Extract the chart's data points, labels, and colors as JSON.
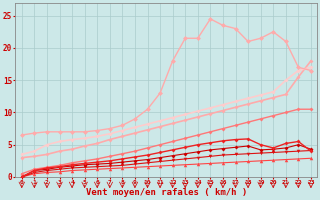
{
  "bg_color": "#cce8e8",
  "grid_color": "#aacccc",
  "xlabel": "Vent moyen/en rafales ( km/h )",
  "xlabel_color": "#cc0000",
  "tick_color": "#cc0000",
  "ylim": [
    0,
    27
  ],
  "yticks": [
    0,
    5,
    10,
    15,
    20,
    25
  ],
  "x_values": [
    0,
    1,
    2,
    3,
    4,
    5,
    6,
    7,
    8,
    9,
    10,
    11,
    12,
    13,
    14,
    15,
    16,
    17,
    18,
    19,
    20,
    21,
    22,
    23
  ],
  "lines": [
    {
      "y": [
        0.0,
        0.5,
        0.7,
        0.8,
        1.0,
        1.1,
        1.2,
        1.3,
        1.4,
        1.5,
        1.6,
        1.7,
        1.8,
        1.9,
        2.0,
        2.1,
        2.2,
        2.3,
        2.4,
        2.5,
        2.6,
        2.7,
        2.8,
        2.9
      ],
      "color": "#ff4444",
      "lw": 0.8,
      "marker": "^",
      "ms": 2.5,
      "zorder": 3
    },
    {
      "y": [
        0.0,
        0.7,
        1.0,
        1.2,
        1.4,
        1.5,
        1.6,
        1.7,
        1.8,
        2.0,
        2.2,
        2.4,
        2.6,
        2.8,
        3.0,
        3.2,
        3.4,
        3.5,
        3.6,
        3.7,
        3.8,
        3.9,
        4.0,
        4.1
      ],
      "color": "#dd1111",
      "lw": 0.8,
      "marker": "v",
      "ms": 2.5,
      "zorder": 3
    },
    {
      "y": [
        0.0,
        1.0,
        1.2,
        1.5,
        1.7,
        1.9,
        2.0,
        2.1,
        2.3,
        2.5,
        2.7,
        3.0,
        3.3,
        3.6,
        3.9,
        4.2,
        4.4,
        4.6,
        4.8,
        4.2,
        4.3,
        4.5,
        5.0,
        4.3
      ],
      "color": "#cc0000",
      "lw": 0.8,
      "marker": "D",
      "ms": 2,
      "zorder": 3
    },
    {
      "y": [
        0.0,
        1.0,
        1.4,
        1.6,
        1.9,
        2.1,
        2.3,
        2.5,
        2.8,
        3.1,
        3.4,
        3.8,
        4.2,
        4.6,
        5.0,
        5.3,
        5.6,
        5.8,
        5.9,
        5.0,
        4.5,
        5.2,
        5.5,
        4.0
      ],
      "color": "#ee2222",
      "lw": 1.0,
      "marker": "D",
      "ms": 2,
      "zorder": 3
    },
    {
      "y": [
        0.5,
        1.2,
        1.5,
        1.8,
        2.2,
        2.5,
        2.8,
        3.2,
        3.6,
        4.0,
        4.5,
        5.0,
        5.5,
        6.0,
        6.5,
        7.0,
        7.5,
        8.0,
        8.5,
        9.0,
        9.5,
        10.0,
        10.5,
        10.5
      ],
      "color": "#ff7777",
      "lw": 1.0,
      "marker": "D",
      "ms": 2,
      "zorder": 2
    },
    {
      "y": [
        3.0,
        3.2,
        3.5,
        4.0,
        4.3,
        4.8,
        5.2,
        5.8,
        6.3,
        6.8,
        7.3,
        7.8,
        8.3,
        8.8,
        9.3,
        9.8,
        10.3,
        10.8,
        11.3,
        11.8,
        12.3,
        12.8,
        15.5,
        18.0
      ],
      "color": "#ffaaaa",
      "lw": 1.2,
      "marker": "D",
      "ms": 2,
      "zorder": 2
    },
    {
      "y": [
        3.5,
        4.0,
        5.0,
        5.5,
        5.8,
        6.0,
        6.3,
        6.7,
        7.2,
        7.7,
        8.2,
        8.7,
        9.2,
        9.7,
        10.2,
        10.7,
        11.2,
        11.7,
        12.2,
        12.7,
        13.2,
        15.0,
        16.5,
        17.0
      ],
      "color": "#ffcccc",
      "lw": 1.2,
      "marker": "D",
      "ms": 2,
      "zorder": 2
    },
    {
      "y": [
        6.5,
        6.8,
        7.0,
        7.0,
        7.0,
        7.0,
        7.2,
        7.5,
        8.0,
        9.0,
        10.5,
        13.0,
        18.0,
        21.5,
        21.5,
        24.5,
        23.5,
        23.0,
        21.0,
        21.5,
        22.5,
        21.0,
        17.0,
        16.5
      ],
      "color": "#ffaaaa",
      "lw": 1.0,
      "marker": "D",
      "ms": 2.5,
      "zorder": 4
    }
  ]
}
